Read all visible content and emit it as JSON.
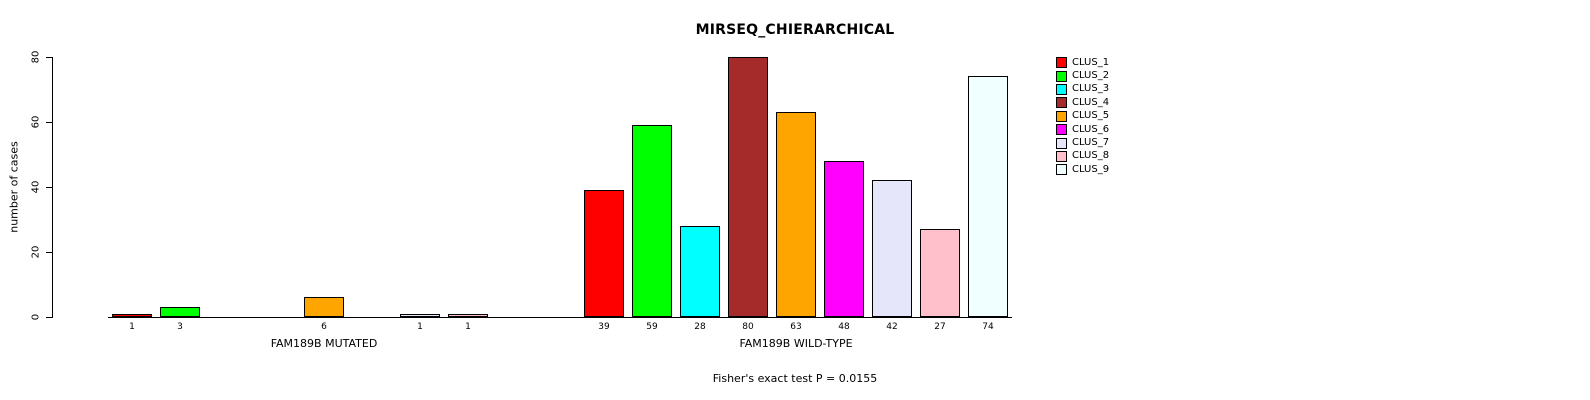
{
  "chart_data": {
    "type": "bar",
    "title": "MIRSEQ_CHIERARCHICAL",
    "ylabel": "number of cases",
    "ylim": [
      0,
      80
    ],
    "yticks": [
      0,
      20,
      40,
      60,
      80
    ],
    "grid": false,
    "legend_position": "right",
    "categories": [
      "CLUS_1",
      "CLUS_2",
      "CLUS_3",
      "CLUS_4",
      "CLUS_5",
      "CLUS_6",
      "CLUS_7",
      "CLUS_8",
      "CLUS_9"
    ],
    "colors": [
      "#FF0000",
      "#00FF00",
      "#00FFFF",
      "#A52A2A",
      "#FFA500",
      "#FF00FF",
      "#E6E6FA",
      "#FFC0CB",
      "#F0FFFF"
    ],
    "series": [
      {
        "name": "FAM189B MUTATED",
        "values": [
          1,
          3,
          0,
          0,
          6,
          0,
          1,
          1,
          0
        ]
      },
      {
        "name": "FAM189B WILD-TYPE",
        "values": [
          39,
          59,
          28,
          80,
          63,
          48,
          42,
          27,
          74
        ]
      }
    ],
    "annotation": "Fisher's exact test P = 0.0155",
    "axis_color": "#000000",
    "background_color": "#FFFFFF"
  }
}
